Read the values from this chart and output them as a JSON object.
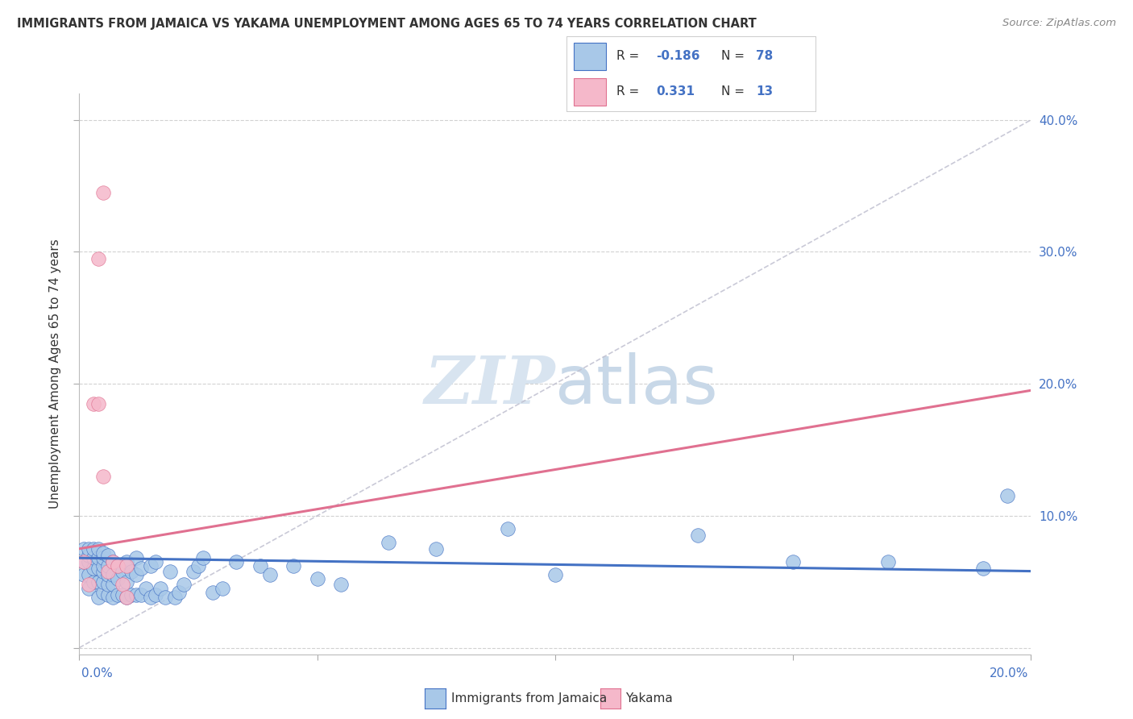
{
  "title": "IMMIGRANTS FROM JAMAICA VS YAKAMA UNEMPLOYMENT AMONG AGES 65 TO 74 YEARS CORRELATION CHART",
  "source": "Source: ZipAtlas.com",
  "ylabel": "Unemployment Among Ages 65 to 74 years",
  "xlim": [
    0,
    0.2
  ],
  "ylim": [
    -0.005,
    0.42
  ],
  "legend_jamaica": "Immigrants from Jamaica",
  "legend_yakama": "Yakama",
  "R_jamaica": -0.186,
  "N_jamaica": 78,
  "R_yakama": 0.331,
  "N_yakama": 13,
  "jamaica_color": "#a8c8e8",
  "yakama_color": "#f5b8ca",
  "jamaica_line_color": "#4472c4",
  "yakama_line_color": "#e07090",
  "dashed_line_color": "#c0c0d0",
  "background_color": "#ffffff",
  "watermark_color": "#d8e4f0",
  "jamaica_line_x0": 0.0,
  "jamaica_line_y0": 0.068,
  "jamaica_line_x1": 0.2,
  "jamaica_line_y1": 0.058,
  "yakama_line_x0": 0.0,
  "yakama_line_y0": 0.075,
  "yakama_line_x1": 0.2,
  "yakama_line_y1": 0.195,
  "jamaica_x": [
    0.001,
    0.001,
    0.001,
    0.002,
    0.002,
    0.002,
    0.002,
    0.002,
    0.003,
    0.003,
    0.003,
    0.003,
    0.004,
    0.004,
    0.004,
    0.004,
    0.004,
    0.005,
    0.005,
    0.005,
    0.005,
    0.005,
    0.005,
    0.006,
    0.006,
    0.006,
    0.006,
    0.006,
    0.007,
    0.007,
    0.007,
    0.007,
    0.008,
    0.008,
    0.008,
    0.009,
    0.009,
    0.01,
    0.01,
    0.01,
    0.011,
    0.011,
    0.012,
    0.012,
    0.012,
    0.013,
    0.013,
    0.014,
    0.015,
    0.015,
    0.016,
    0.016,
    0.017,
    0.018,
    0.019,
    0.02,
    0.021,
    0.022,
    0.024,
    0.025,
    0.026,
    0.028,
    0.03,
    0.033,
    0.038,
    0.04,
    0.045,
    0.05,
    0.055,
    0.065,
    0.075,
    0.09,
    0.1,
    0.13,
    0.15,
    0.17,
    0.19,
    0.195
  ],
  "jamaica_y": [
    0.055,
    0.065,
    0.075,
    0.045,
    0.055,
    0.065,
    0.07,
    0.075,
    0.05,
    0.06,
    0.068,
    0.075,
    0.038,
    0.05,
    0.06,
    0.068,
    0.075,
    0.042,
    0.05,
    0.058,
    0.062,
    0.068,
    0.072,
    0.04,
    0.048,
    0.055,
    0.062,
    0.07,
    0.038,
    0.048,
    0.055,
    0.065,
    0.04,
    0.052,
    0.062,
    0.04,
    0.058,
    0.038,
    0.05,
    0.065,
    0.04,
    0.058,
    0.04,
    0.055,
    0.068,
    0.04,
    0.06,
    0.045,
    0.038,
    0.062,
    0.04,
    0.065,
    0.045,
    0.038,
    0.058,
    0.038,
    0.042,
    0.048,
    0.058,
    0.062,
    0.068,
    0.042,
    0.045,
    0.065,
    0.062,
    0.055,
    0.062,
    0.052,
    0.048,
    0.08,
    0.075,
    0.09,
    0.055,
    0.085,
    0.065,
    0.065,
    0.06,
    0.115
  ],
  "yakama_x": [
    0.001,
    0.002,
    0.003,
    0.004,
    0.004,
    0.005,
    0.005,
    0.006,
    0.007,
    0.008,
    0.009,
    0.01,
    0.01
  ],
  "yakama_y": [
    0.065,
    0.048,
    0.185,
    0.295,
    0.185,
    0.13,
    0.345,
    0.058,
    0.065,
    0.062,
    0.048,
    0.038,
    0.062
  ]
}
